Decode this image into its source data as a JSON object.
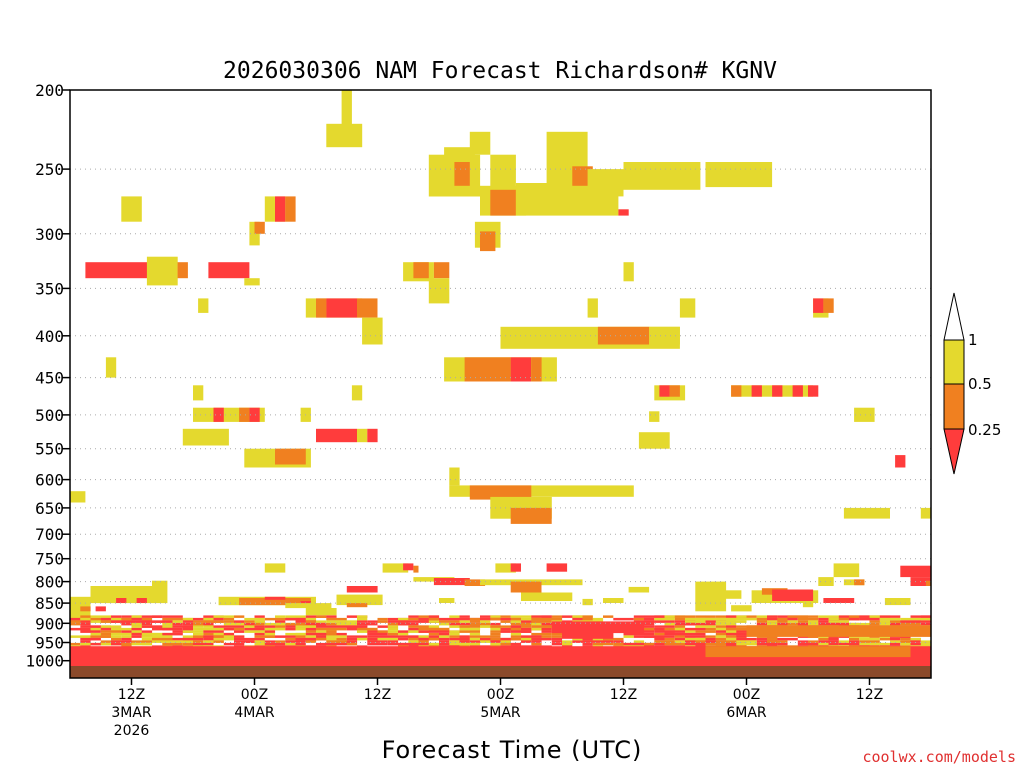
{
  "chart_data": {
    "type": "heatmap",
    "title": "2026030306 NAM Forecast Richardson# KGNV",
    "xlabel": "Forecast Time (UTC)",
    "ylabel": "",
    "y_scale": "log-pressure",
    "ylim": [
      1050,
      200
    ],
    "xlim": [
      0,
      84
    ],
    "y_ticks": [
      200,
      250,
      300,
      350,
      400,
      450,
      500,
      550,
      600,
      650,
      700,
      750,
      800,
      850,
      900,
      950,
      1000
    ],
    "grid_levels": [
      250,
      300,
      350,
      400,
      450,
      500,
      550,
      600,
      650,
      700,
      750,
      800,
      850,
      900,
      950
    ],
    "x_ticks": [
      {
        "hour": 6,
        "label": [
          "12Z",
          "3MAR",
          "2026"
        ]
      },
      {
        "hour": 18,
        "label": [
          "00Z",
          "4MAR"
        ]
      },
      {
        "hour": 30,
        "label": [
          "12Z"
        ]
      },
      {
        "hour": 42,
        "label": [
          "00Z",
          "5MAR"
        ]
      },
      {
        "hour": 54,
        "label": [
          "12Z"
        ]
      },
      {
        "hour": 66,
        "label": [
          "00Z",
          "6MAR"
        ]
      },
      {
        "hour": 78,
        "label": [
          "12Z"
        ]
      }
    ],
    "legend": {
      "placement": "right",
      "labels": [
        "1",
        "0.5",
        "0.25"
      ],
      "bins": [
        {
          "range": ">1",
          "color": "#ffffff"
        },
        {
          "range": "0.5-1",
          "color": "#e4d92e"
        },
        {
          "range": "0.25-0.5",
          "color": "#f08020"
        },
        {
          "range": "<0.25",
          "color": "#ff3c3c"
        }
      ]
    },
    "colors": {
      "yellow": "#e4d92e",
      "orange": "#f08020",
      "red": "#ff3c3c",
      "ground": "#8b4a2b",
      "grid": "#aaaaaa"
    },
    "cells": [
      {
        "x0": 0.0,
        "x1": 1.5,
        "p0": 640,
        "p1": 620,
        "v": "yellow"
      },
      {
        "x0": 5.0,
        "x1": 7.0,
        "p0": 290,
        "p1": 270,
        "v": "yellow"
      },
      {
        "x0": 1.5,
        "x1": 10.5,
        "p0": 340,
        "p1": 325,
        "v": "red"
      },
      {
        "x0": 7.5,
        "x1": 10.5,
        "p0": 347,
        "p1": 320,
        "v": "yellow"
      },
      {
        "x0": 10.5,
        "x1": 11.5,
        "p0": 340,
        "p1": 325,
        "v": "orange"
      },
      {
        "x0": 12.5,
        "x1": 13.5,
        "p0": 375,
        "p1": 360,
        "v": "yellow"
      },
      {
        "x0": 13.5,
        "x1": 17.5,
        "p0": 340,
        "p1": 325,
        "v": "red"
      },
      {
        "x0": 17.0,
        "x1": 18.5,
        "p0": 347,
        "p1": 340,
        "v": "yellow"
      },
      {
        "x0": 17.5,
        "x1": 18.5,
        "p0": 310,
        "p1": 290,
        "v": "yellow"
      },
      {
        "x0": 18.0,
        "x1": 19.0,
        "p0": 300,
        "p1": 290,
        "v": "orange"
      },
      {
        "x0": 19.0,
        "x1": 21.0,
        "p0": 290,
        "p1": 270,
        "v": "yellow"
      },
      {
        "x0": 20.0,
        "x1": 21.0,
        "p0": 290,
        "p1": 270,
        "v": "red"
      },
      {
        "x0": 21.0,
        "x1": 22.0,
        "p0": 290,
        "p1": 270,
        "v": "orange"
      },
      {
        "x0": 26.5,
        "x1": 27.5,
        "p0": 227,
        "p1": 200,
        "v": "yellow"
      },
      {
        "x0": 25.0,
        "x1": 28.5,
        "p0": 235,
        "p1": 220,
        "v": "yellow"
      },
      {
        "x0": 23.0,
        "x1": 28.5,
        "p0": 380,
        "p1": 360,
        "v": "yellow"
      },
      {
        "x0": 24.0,
        "x1": 25.0,
        "p0": 380,
        "p1": 360,
        "v": "orange"
      },
      {
        "x0": 25.0,
        "x1": 28.0,
        "p0": 380,
        "p1": 360,
        "v": "red"
      },
      {
        "x0": 28.0,
        "x1": 30.0,
        "p0": 380,
        "p1": 360,
        "v": "orange"
      },
      {
        "x0": 28.5,
        "x1": 30.5,
        "p0": 410,
        "p1": 380,
        "v": "yellow"
      },
      {
        "x0": 32.5,
        "x1": 35.5,
        "p0": 343,
        "p1": 325,
        "v": "yellow"
      },
      {
        "x0": 33.5,
        "x1": 35.0,
        "p0": 340,
        "p1": 325,
        "v": "orange"
      },
      {
        "x0": 35.5,
        "x1": 37.0,
        "p0": 340,
        "p1": 325,
        "v": "orange"
      },
      {
        "x0": 35.0,
        "x1": 37.0,
        "p0": 365,
        "p1": 340,
        "v": "yellow"
      },
      {
        "x0": 35.0,
        "x1": 40.0,
        "p0": 270,
        "p1": 240,
        "v": "yellow"
      },
      {
        "x0": 36.5,
        "x1": 39.5,
        "p0": 250,
        "p1": 235,
        "v": "yellow"
      },
      {
        "x0": 37.5,
        "x1": 39.0,
        "p0": 262,
        "p1": 245,
        "v": "orange"
      },
      {
        "x0": 39.0,
        "x1": 41.0,
        "p0": 240,
        "p1": 225,
        "v": "yellow"
      },
      {
        "x0": 39.5,
        "x1": 42.0,
        "p0": 312,
        "p1": 290,
        "v": "yellow"
      },
      {
        "x0": 40.0,
        "x1": 41.5,
        "p0": 315,
        "p1": 298,
        "v": "orange"
      },
      {
        "x0": 40.0,
        "x1": 44.5,
        "p0": 285,
        "p1": 262,
        "v": "yellow"
      },
      {
        "x0": 41.0,
        "x1": 43.5,
        "p0": 270,
        "p1": 240,
        "v": "yellow"
      },
      {
        "x0": 41.0,
        "x1": 43.5,
        "p0": 285,
        "p1": 265,
        "v": "orange"
      },
      {
        "x0": 43.5,
        "x1": 53.5,
        "p0": 285,
        "p1": 260,
        "v": "yellow"
      },
      {
        "x0": 46.5,
        "x1": 50.5,
        "p0": 265,
        "p1": 225,
        "v": "yellow"
      },
      {
        "x0": 48.5,
        "x1": 49.5,
        "p0": 240,
        "p1": 228,
        "v": "yellow"
      },
      {
        "x0": 49.0,
        "x1": 51.0,
        "p0": 262,
        "p1": 248,
        "v": "orange"
      },
      {
        "x0": 50.5,
        "x1": 54.0,
        "p0": 270,
        "p1": 250,
        "v": "yellow"
      },
      {
        "x0": 53.5,
        "x1": 54.5,
        "p0": 285,
        "p1": 280,
        "v": "red"
      },
      {
        "x0": 54.0,
        "x1": 61.5,
        "p0": 265,
        "p1": 245,
        "v": "yellow"
      },
      {
        "x0": 62.0,
        "x1": 68.5,
        "p0": 263,
        "p1": 245,
        "v": "yellow"
      },
      {
        "x0": 54.0,
        "x1": 55.0,
        "p0": 343,
        "p1": 325,
        "v": "yellow"
      },
      {
        "x0": 50.5,
        "x1": 51.5,
        "p0": 380,
        "p1": 360,
        "v": "yellow"
      },
      {
        "x0": 59.5,
        "x1": 61.0,
        "p0": 380,
        "p1": 360,
        "v": "yellow"
      },
      {
        "x0": 42.0,
        "x1": 59.5,
        "p0": 415,
        "p1": 390,
        "v": "yellow"
      },
      {
        "x0": 51.5,
        "x1": 56.5,
        "p0": 410,
        "p1": 390,
        "v": "orange"
      },
      {
        "x0": 56.5,
        "x1": 59.5,
        "p0": 410,
        "p1": 390,
        "v": "yellow"
      },
      {
        "x0": 36.5,
        "x1": 47.5,
        "p0": 455,
        "p1": 425,
        "v": "yellow"
      },
      {
        "x0": 38.5,
        "x1": 43.0,
        "p0": 455,
        "p1": 425,
        "v": "orange"
      },
      {
        "x0": 43.0,
        "x1": 45.0,
        "p0": 455,
        "p1": 425,
        "v": "red"
      },
      {
        "x0": 45.0,
        "x1": 46.0,
        "p0": 455,
        "p1": 425,
        "v": "orange"
      },
      {
        "x0": 3.5,
        "x1": 4.5,
        "p0": 450,
        "p1": 425,
        "v": "yellow"
      },
      {
        "x0": 12.0,
        "x1": 13.0,
        "p0": 480,
        "p1": 460,
        "v": "yellow"
      },
      {
        "x0": 27.5,
        "x1": 28.5,
        "p0": 480,
        "p1": 460,
        "v": "yellow"
      },
      {
        "x0": 12.0,
        "x1": 19.0,
        "p0": 510,
        "p1": 490,
        "v": "yellow"
      },
      {
        "x0": 14.0,
        "x1": 15.0,
        "p0": 510,
        "p1": 490,
        "v": "red"
      },
      {
        "x0": 16.5,
        "x1": 17.5,
        "p0": 510,
        "p1": 490,
        "v": "orange"
      },
      {
        "x0": 17.5,
        "x1": 18.5,
        "p0": 510,
        "p1": 490,
        "v": "red"
      },
      {
        "x0": 22.5,
        "x1": 23.5,
        "p0": 510,
        "p1": 490,
        "v": "yellow"
      },
      {
        "x0": 11.0,
        "x1": 15.5,
        "p0": 545,
        "p1": 520,
        "v": "yellow"
      },
      {
        "x0": 24.0,
        "x1": 28.0,
        "p0": 540,
        "p1": 520,
        "v": "red"
      },
      {
        "x0": 28.0,
        "x1": 29.0,
        "p0": 540,
        "p1": 520,
        "v": "yellow"
      },
      {
        "x0": 29.0,
        "x1": 30.0,
        "p0": 540,
        "p1": 520,
        "v": "red"
      },
      {
        "x0": 17.0,
        "x1": 23.5,
        "p0": 580,
        "p1": 550,
        "v": "yellow"
      },
      {
        "x0": 20.0,
        "x1": 23.0,
        "p0": 575,
        "p1": 550,
        "v": "orange"
      },
      {
        "x0": 55.5,
        "x1": 58.5,
        "p0": 550,
        "p1": 525,
        "v": "yellow"
      },
      {
        "x0": 56.5,
        "x1": 57.5,
        "p0": 510,
        "p1": 495,
        "v": "yellow"
      },
      {
        "x0": 57.0,
        "x1": 60.0,
        "p0": 480,
        "p1": 460,
        "v": "yellow"
      },
      {
        "x0": 57.5,
        "x1": 58.5,
        "p0": 475,
        "p1": 460,
        "v": "red"
      },
      {
        "x0": 58.5,
        "x1": 59.5,
        "p0": 475,
        "p1": 460,
        "v": "orange"
      },
      {
        "x0": 64.5,
        "x1": 72.5,
        "p0": 475,
        "p1": 460,
        "v": "yellow"
      },
      {
        "x0": 64.5,
        "x1": 65.5,
        "p0": 475,
        "p1": 460,
        "v": "orange"
      },
      {
        "x0": 66.5,
        "x1": 67.5,
        "p0": 475,
        "p1": 460,
        "v": "red"
      },
      {
        "x0": 68.5,
        "x1": 69.5,
        "p0": 475,
        "p1": 460,
        "v": "red"
      },
      {
        "x0": 70.5,
        "x1": 71.5,
        "p0": 475,
        "p1": 460,
        "v": "red"
      },
      {
        "x0": 72.0,
        "x1": 73.0,
        "p0": 475,
        "p1": 460,
        "v": "red"
      },
      {
        "x0": 72.5,
        "x1": 74.0,
        "p0": 380,
        "p1": 360,
        "v": "yellow"
      },
      {
        "x0": 72.5,
        "x1": 73.5,
        "p0": 375,
        "p1": 360,
        "v": "red"
      },
      {
        "x0": 73.5,
        "x1": 74.5,
        "p0": 375,
        "p1": 360,
        "v": "orange"
      },
      {
        "x0": 76.5,
        "x1": 78.5,
        "p0": 510,
        "p1": 490,
        "v": "yellow"
      },
      {
        "x0": 80.5,
        "x1": 81.5,
        "p0": 580,
        "p1": 560,
        "v": "red"
      },
      {
        "x0": 37.0,
        "x1": 55.0,
        "p0": 630,
        "p1": 610,
        "v": "yellow"
      },
      {
        "x0": 39.0,
        "x1": 45.0,
        "p0": 635,
        "p1": 610,
        "v": "orange"
      },
      {
        "x0": 41.0,
        "x1": 47.0,
        "p0": 670,
        "p1": 630,
        "v": "yellow"
      },
      {
        "x0": 43.0,
        "x1": 47.0,
        "p0": 680,
        "p1": 650,
        "v": "orange"
      },
      {
        "x0": 37.0,
        "x1": 38.0,
        "p0": 610,
        "p1": 580,
        "v": "yellow"
      },
      {
        "x0": 75.5,
        "x1": 80.0,
        "p0": 670,
        "p1": 650,
        "v": "yellow"
      },
      {
        "x0": 83.0,
        "x1": 84.0,
        "p0": 670,
        "p1": 650,
        "v": "yellow"
      },
      {
        "x0": 2.0,
        "x1": 9.5,
        "p0": 850,
        "p1": 810,
        "v": "yellow"
      },
      {
        "x0": 4.5,
        "x1": 5.5,
        "p0": 850,
        "p1": 838,
        "v": "red"
      },
      {
        "x0": 6.5,
        "x1": 7.5,
        "p0": 850,
        "p1": 838,
        "v": "red"
      },
      {
        "x0": 0.0,
        "x1": 2.0,
        "p0": 900,
        "p1": 835,
        "v": "yellow"
      },
      {
        "x0": 1.0,
        "x1": 2.0,
        "p0": 870,
        "p1": 858,
        "v": "orange"
      },
      {
        "x0": 2.5,
        "x1": 3.5,
        "p0": 870,
        "p1": 858,
        "v": "red"
      },
      {
        "x0": 8.0,
        "x1": 9.5,
        "p0": 810,
        "p1": 798,
        "v": "yellow"
      },
      {
        "x0": 14.5,
        "x1": 24.0,
        "p0": 855,
        "p1": 835,
        "v": "yellow"
      },
      {
        "x0": 16.5,
        "x1": 23.5,
        "p0": 855,
        "p1": 838,
        "v": "orange"
      },
      {
        "x0": 19.0,
        "x1": 21.0,
        "p0": 842,
        "p1": 835,
        "v": "red"
      },
      {
        "x0": 22.5,
        "x1": 23.5,
        "p0": 855,
        "p1": 845,
        "v": "red"
      },
      {
        "x0": 21.0,
        "x1": 25.5,
        "p0": 862,
        "p1": 850,
        "v": "yellow"
      },
      {
        "x0": 23.0,
        "x1": 26.0,
        "p0": 880,
        "p1": 862,
        "v": "yellow"
      },
      {
        "x0": 27.0,
        "x1": 30.0,
        "p0": 825,
        "p1": 810,
        "v": "red"
      },
      {
        "x0": 26.0,
        "x1": 30.5,
        "p0": 855,
        "p1": 830,
        "v": "yellow"
      },
      {
        "x0": 27.0,
        "x1": 29.0,
        "p0": 860,
        "p1": 850,
        "v": "orange"
      },
      {
        "x0": 19.0,
        "x1": 21.0,
        "p0": 780,
        "p1": 760,
        "v": "yellow"
      },
      {
        "x0": 30.5,
        "x1": 33.0,
        "p0": 780,
        "p1": 760,
        "v": "yellow"
      },
      {
        "x0": 32.5,
        "x1": 33.5,
        "p0": 775,
        "p1": 760,
        "v": "red"
      },
      {
        "x0": 33.5,
        "x1": 34.0,
        "p0": 780,
        "p1": 765,
        "v": "orange"
      },
      {
        "x0": 33.5,
        "x1": 37.5,
        "p0": 800,
        "p1": 790,
        "v": "yellow"
      },
      {
        "x0": 35.5,
        "x1": 39.0,
        "p0": 808,
        "p1": 792,
        "v": "red"
      },
      {
        "x0": 38.5,
        "x1": 40.5,
        "p0": 810,
        "p1": 795,
        "v": "orange"
      },
      {
        "x0": 40.0,
        "x1": 50.0,
        "p0": 808,
        "p1": 795,
        "v": "yellow"
      },
      {
        "x0": 41.5,
        "x1": 43.5,
        "p0": 780,
        "p1": 760,
        "v": "yellow"
      },
      {
        "x0": 43.0,
        "x1": 44.0,
        "p0": 778,
        "p1": 760,
        "v": "red"
      },
      {
        "x0": 46.5,
        "x1": 48.5,
        "p0": 778,
        "p1": 760,
        "v": "red"
      },
      {
        "x0": 43.0,
        "x1": 46.0,
        "p0": 825,
        "p1": 800,
        "v": "orange"
      },
      {
        "x0": 44.0,
        "x1": 49.0,
        "p0": 845,
        "p1": 825,
        "v": "yellow"
      },
      {
        "x0": 36.0,
        "x1": 37.5,
        "p0": 850,
        "p1": 838,
        "v": "yellow"
      },
      {
        "x0": 50.0,
        "x1": 51.0,
        "p0": 855,
        "p1": 840,
        "v": "yellow"
      },
      {
        "x0": 52.0,
        "x1": 54.0,
        "p0": 850,
        "p1": 838,
        "v": "yellow"
      },
      {
        "x0": 54.5,
        "x1": 56.5,
        "p0": 825,
        "p1": 812,
        "v": "yellow"
      },
      {
        "x0": 61.0,
        "x1": 64.0,
        "p0": 870,
        "p1": 800,
        "v": "yellow"
      },
      {
        "x0": 64.0,
        "x1": 65.5,
        "p0": 840,
        "p1": 820,
        "v": "yellow"
      },
      {
        "x0": 64.5,
        "x1": 66.5,
        "p0": 870,
        "p1": 855,
        "v": "yellow"
      },
      {
        "x0": 66.5,
        "x1": 73.0,
        "p0": 850,
        "p1": 820,
        "v": "yellow"
      },
      {
        "x0": 67.5,
        "x1": 70.0,
        "p0": 830,
        "p1": 815,
        "v": "orange"
      },
      {
        "x0": 68.5,
        "x1": 72.5,
        "p0": 845,
        "p1": 818,
        "v": "red"
      },
      {
        "x0": 71.5,
        "x1": 72.5,
        "p0": 860,
        "p1": 845,
        "v": "yellow"
      },
      {
        "x0": 73.5,
        "x1": 76.5,
        "p0": 850,
        "p1": 838,
        "v": "red"
      },
      {
        "x0": 73.0,
        "x1": 74.5,
        "p0": 810,
        "p1": 790,
        "v": "yellow"
      },
      {
        "x0": 74.5,
        "x1": 77.0,
        "p0": 790,
        "p1": 760,
        "v": "yellow"
      },
      {
        "x0": 75.5,
        "x1": 77.5,
        "p0": 808,
        "p1": 795,
        "v": "yellow"
      },
      {
        "x0": 76.5,
        "x1": 77.5,
        "p0": 808,
        "p1": 795,
        "v": "orange"
      },
      {
        "x0": 79.5,
        "x1": 82.0,
        "p0": 855,
        "p1": 838,
        "v": "yellow"
      },
      {
        "x0": 81.0,
        "x1": 84.0,
        "p0": 790,
        "p1": 765,
        "v": "red"
      },
      {
        "x0": 82.0,
        "x1": 84.0,
        "p0": 810,
        "p1": 790,
        "v": "red"
      },
      {
        "x0": 83.5,
        "x1": 84.0,
        "p0": 810,
        "p1": 798,
        "v": "orange"
      },
      {
        "x0": 0.0,
        "x1": 84.0,
        "p0": 960,
        "p1": 880,
        "v": "mixed"
      },
      {
        "x0": 0.0,
        "x1": 84.0,
        "p0": 1050,
        "p1": 960,
        "v": "red"
      },
      {
        "x0": 47.0,
        "x1": 56.0,
        "p0": 925,
        "p1": 895,
        "v": "red"
      },
      {
        "x0": 48.0,
        "x1": 53.0,
        "p0": 940,
        "p1": 915,
        "v": "red"
      },
      {
        "x0": 66.0,
        "x1": 84.0,
        "p0": 935,
        "p1": 905,
        "v": "orange"
      },
      {
        "x0": 62.0,
        "x1": 82.0,
        "p0": 990,
        "p1": 960,
        "v": "orange"
      }
    ]
  }
}
